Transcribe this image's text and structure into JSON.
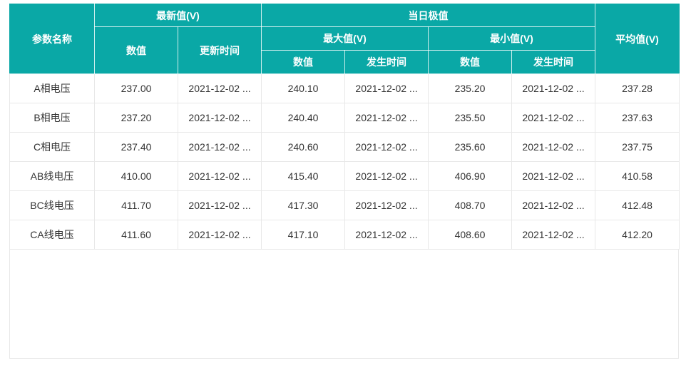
{
  "colors": {
    "header_bg": "#0aa8a6",
    "header_text": "#ffffff",
    "body_text": "#333333",
    "grid_line": "#e8e8e8"
  },
  "table": {
    "headers": {
      "param_name": "参数名称",
      "latest": {
        "label": "最新值(V)",
        "value": "数值",
        "time": "更新时间"
      },
      "daily_extreme": {
        "label": "当日极值",
        "max": {
          "label": "最大值(V)",
          "value": "数值",
          "time": "发生时间"
        },
        "min": {
          "label": "最小值(V)",
          "value": "数值",
          "time": "发生时间"
        }
      },
      "average": "平均值(V)"
    },
    "rows": [
      {
        "name": "A相电压",
        "latest_value": "237.00",
        "latest_time": "2021-12-02 ...",
        "max_value": "240.10",
        "max_time": "2021-12-02 ...",
        "min_value": "235.20",
        "min_time": "2021-12-02 ...",
        "average": "237.28"
      },
      {
        "name": "B相电压",
        "latest_value": "237.20",
        "latest_time": "2021-12-02 ...",
        "max_value": "240.40",
        "max_time": "2021-12-02 ...",
        "min_value": "235.50",
        "min_time": "2021-12-02 ...",
        "average": "237.63"
      },
      {
        "name": "C相电压",
        "latest_value": "237.40",
        "latest_time": "2021-12-02 ...",
        "max_value": "240.60",
        "max_time": "2021-12-02 ...",
        "min_value": "235.60",
        "min_time": "2021-12-02 ...",
        "average": "237.75"
      },
      {
        "name": "AB线电压",
        "latest_value": "410.00",
        "latest_time": "2021-12-02 ...",
        "max_value": "415.40",
        "max_time": "2021-12-02 ...",
        "min_value": "406.90",
        "min_time": "2021-12-02 ...",
        "average": "410.58"
      },
      {
        "name": "BC线电压",
        "latest_value": "411.70",
        "latest_time": "2021-12-02 ...",
        "max_value": "417.30",
        "max_time": "2021-12-02 ...",
        "min_value": "408.70",
        "min_time": "2021-12-02 ...",
        "average": "412.48"
      },
      {
        "name": "CA线电压",
        "latest_value": "411.60",
        "latest_time": "2021-12-02 ...",
        "max_value": "417.10",
        "max_time": "2021-12-02 ...",
        "min_value": "408.60",
        "min_time": "2021-12-02 ...",
        "average": "412.20"
      }
    ]
  }
}
